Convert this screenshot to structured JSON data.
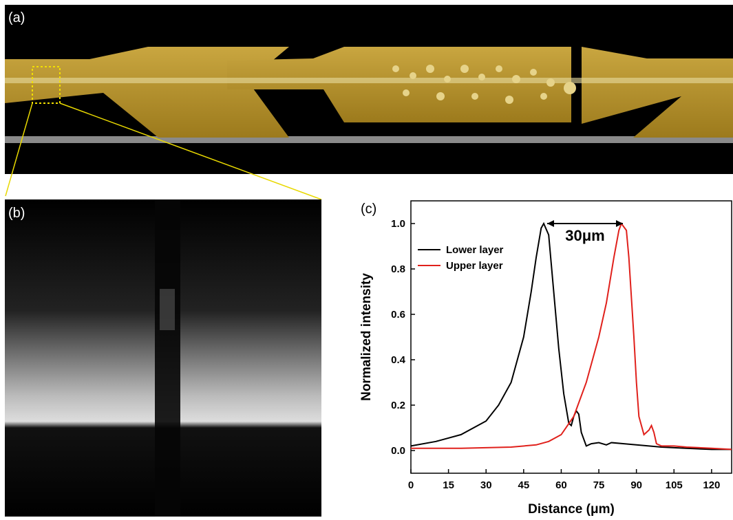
{
  "panels": {
    "a": "(a)",
    "b": "(b)",
    "c": "(c)"
  },
  "chart_data": {
    "type": "line",
    "xlabel": "Distance (μm)",
    "ylabel": "Normalized intensity",
    "annotation": "30μm",
    "xlim": [
      0,
      128
    ],
    "ylim": [
      -0.1,
      1.1
    ],
    "xticks": [
      0,
      15,
      30,
      45,
      60,
      75,
      90,
      105,
      120
    ],
    "yticks": [
      {
        "value": 0,
        "label": "0.0"
      },
      0.2,
      0.4,
      0.6,
      0.8,
      {
        "value": 1,
        "label": "1.0"
      }
    ],
    "legend": "upper left",
    "series": [
      {
        "name": "Lower layer",
        "color": "#000000",
        "x": [
          0,
          10,
          20,
          30,
          35,
          40,
          45,
          48,
          50,
          52,
          53,
          55,
          57,
          59,
          61,
          63,
          64,
          65,
          66,
          67,
          68,
          70,
          72,
          75,
          78,
          80,
          85,
          90,
          95,
          100,
          110,
          120,
          128
        ],
        "values": [
          0.02,
          0.04,
          0.07,
          0.13,
          0.2,
          0.3,
          0.5,
          0.7,
          0.85,
          0.98,
          1.0,
          0.95,
          0.7,
          0.45,
          0.25,
          0.12,
          0.11,
          0.15,
          0.175,
          0.16,
          0.08,
          0.02,
          0.03,
          0.035,
          0.025,
          0.035,
          0.03,
          0.025,
          0.02,
          0.015,
          0.01,
          0.005,
          0.005
        ]
      },
      {
        "name": "Upper layer",
        "color": "#e0201b",
        "x": [
          0,
          20,
          40,
          50,
          55,
          60,
          65,
          70,
          75,
          78,
          81,
          83,
          84,
          86,
          87,
          89,
          90,
          91,
          93,
          95,
          96,
          97,
          98,
          100,
          105,
          110,
          120,
          128
        ],
        "values": [
          0.01,
          0.01,
          0.015,
          0.025,
          0.04,
          0.07,
          0.15,
          0.3,
          0.5,
          0.65,
          0.85,
          0.97,
          1.0,
          0.97,
          0.85,
          0.5,
          0.3,
          0.15,
          0.07,
          0.09,
          0.11,
          0.08,
          0.03,
          0.02,
          0.02,
          0.015,
          0.01,
          0.005
        ]
      }
    ]
  }
}
